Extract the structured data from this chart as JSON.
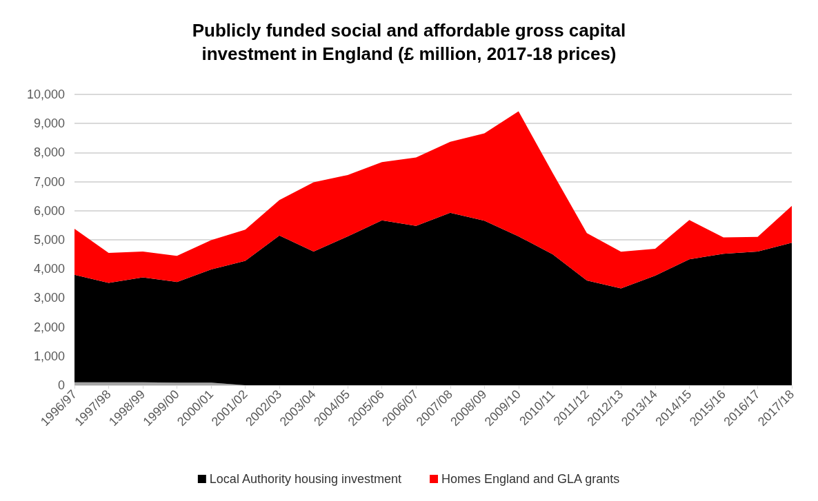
{
  "chart_data": {
    "type": "area",
    "title": "Publicly funded social and affordable gross capital\ninvestment in England (£ million, 2017-18 prices)",
    "categories": [
      "1996/97",
      "1997/98",
      "1998/99",
      "1999/00",
      "2000/01",
      "2001/02",
      "2002/03",
      "2003/04",
      "2004/05",
      "2005/06",
      "2006/07",
      "2007/08",
      "2008/09",
      "2009/10",
      "2010/11",
      "2011/12",
      "2012/13",
      "2013/14",
      "2014/15",
      "2015/16",
      "2016/17",
      "2017/18"
    ],
    "stacked": true,
    "series": [
      {
        "color": "#a6a6a6",
        "values": [
          100,
          100,
          100,
          90,
          90,
          0,
          0,
          0,
          0,
          0,
          0,
          0,
          0,
          0,
          0,
          0,
          0,
          0,
          0,
          0,
          0,
          0
        ]
      },
      {
        "name": "Local Authority housing investment",
        "color": "#000000",
        "values": [
          3700,
          3420,
          3610,
          3460,
          3890,
          4280,
          5150,
          4600,
          5120,
          5670,
          5480,
          5930,
          5660,
          5120,
          4500,
          3600,
          3330,
          3770,
          4330,
          4520,
          4600,
          4900
        ]
      },
      {
        "name": "Homes England and GLA grants",
        "color": "#ff0000",
        "values": [
          1580,
          1030,
          890,
          900,
          1010,
          1070,
          1220,
          2380,
          2110,
          2000,
          2350,
          2440,
          3000,
          4300,
          2800,
          1630,
          1260,
          920,
          1350,
          560,
          500,
          1270
        ]
      }
    ],
    "ylim": [
      0,
      10000
    ],
    "yticks": [
      0,
      {
        "value": 1000,
        "label": "1,000"
      },
      {
        "value": 2000,
        "label": "2,000"
      },
      {
        "value": 3000,
        "label": "3,000"
      },
      {
        "value": 4000,
        "label": "4,000"
      },
      {
        "value": 5000,
        "label": "5,000"
      },
      {
        "value": 6000,
        "label": "6,000"
      },
      {
        "value": 7000,
        "label": "7,000"
      },
      {
        "value": 8000,
        "label": "8,000"
      },
      {
        "value": 9000,
        "label": "9,000"
      },
      {
        "value": 10000,
        "label": "10,000"
      }
    ],
    "grid": "y",
    "legend": "bottom",
    "marker": "none"
  }
}
